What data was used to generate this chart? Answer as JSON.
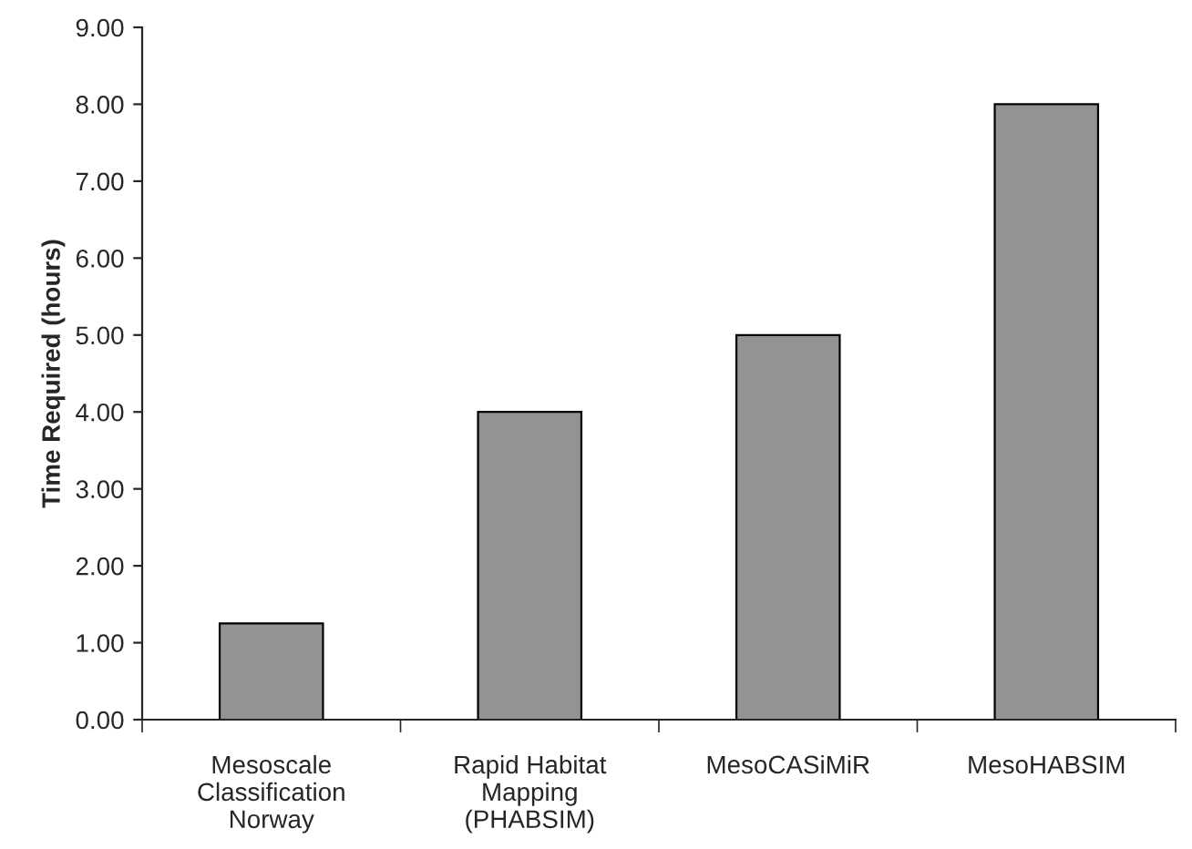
{
  "chart_data": {
    "type": "bar",
    "ylabel": "Time Required (hours)",
    "categories": [
      "Mesoscale\nClassification\nNorway",
      "Rapid Habitat\nMapping\n(PHABSIM)",
      "MesoCASiMiR",
      "MesoHABSIM"
    ],
    "values": [
      1.25,
      4.0,
      5.0,
      8.0
    ],
    "color": "#939393",
    "ylim": [
      0,
      9
    ],
    "yticks": [
      {
        "value": 0,
        "label": "0.00"
      },
      {
        "value": 1,
        "label": "1.00"
      },
      {
        "value": 2,
        "label": "2.00"
      },
      {
        "value": 3,
        "label": "3.00"
      },
      {
        "value": 4,
        "label": "4.00"
      },
      {
        "value": 5,
        "label": "5.00"
      },
      {
        "value": 6,
        "label": "6.00"
      },
      {
        "value": 7,
        "label": "7.00"
      },
      {
        "value": 8,
        "label": "8.00"
      },
      {
        "value": 9,
        "label": "9.00"
      }
    ],
    "grid": false,
    "legend": false
  }
}
